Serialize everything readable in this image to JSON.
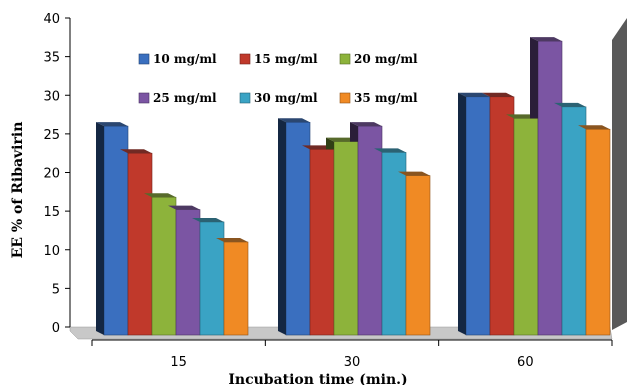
{
  "chart_data": {
    "type": "bar",
    "title": "",
    "xlabel": "Incubation time (min.)",
    "ylabel": "EE % of Ribavirin",
    "categories": [
      "15",
      "30",
      "60"
    ],
    "ylim": [
      0,
      40
    ],
    "yticks": [
      0,
      5,
      10,
      15,
      20,
      25,
      30,
      35,
      40
    ],
    "grid": false,
    "legend_position": "top-center",
    "series": [
      {
        "name": "10 mg/ml",
        "color": "#3a6fbf",
        "values": [
          26,
          26.5,
          29.8
        ]
      },
      {
        "name": "15 mg/ml",
        "color": "#c0392b",
        "values": [
          22.5,
          23,
          29.8
        ]
      },
      {
        "name": "20 mg/ml",
        "color": "#8db33b",
        "values": [
          16.8,
          24,
          27
        ]
      },
      {
        "name": "25 mg/ml",
        "color": "#7b55a3",
        "values": [
          15.2,
          26,
          37
        ]
      },
      {
        "name": "30 mg/ml",
        "color": "#3aa3c4",
        "values": [
          13.6,
          22.6,
          28.5
        ]
      },
      {
        "name": "35 mg/ml",
        "color": "#f08a24",
        "values": [
          11,
          19.6,
          25.6
        ]
      }
    ]
  }
}
